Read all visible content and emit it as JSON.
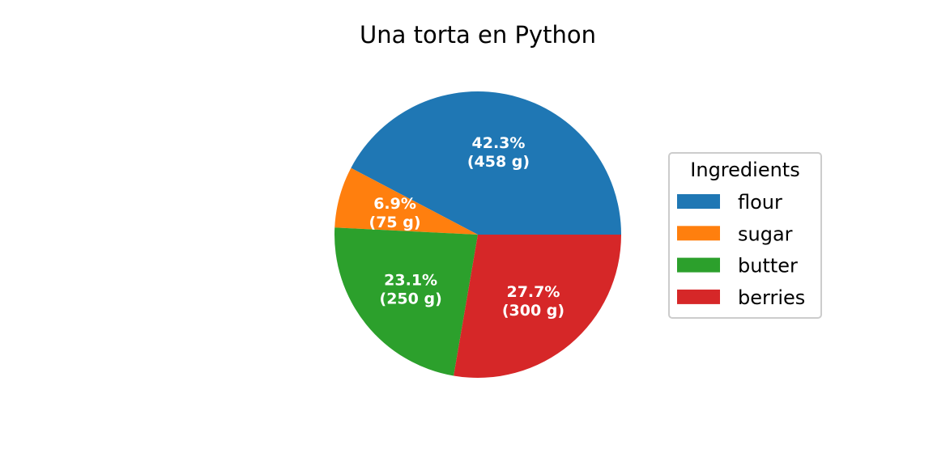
{
  "chart_data": {
    "type": "pie",
    "title": "Una torta en Python",
    "legend": {
      "title": "Ingredients",
      "placement": "right"
    },
    "slices": [
      {
        "label": "flour",
        "value": 458,
        "percent_label": "42.3%",
        "value_label": "(458 g)",
        "color": "#1f77b4"
      },
      {
        "label": "sugar",
        "value": 75,
        "percent_label": "6.9%",
        "value_label": "(75 g)",
        "color": "#ff7f0e"
      },
      {
        "label": "butter",
        "value": 250,
        "percent_label": "23.1%",
        "value_label": "(250 g)",
        "color": "#2ca02c"
      },
      {
        "label": "berries",
        "value": 300,
        "percent_label": "27.7%",
        "value_label": "(300 g)",
        "color": "#d62728"
      }
    ]
  }
}
